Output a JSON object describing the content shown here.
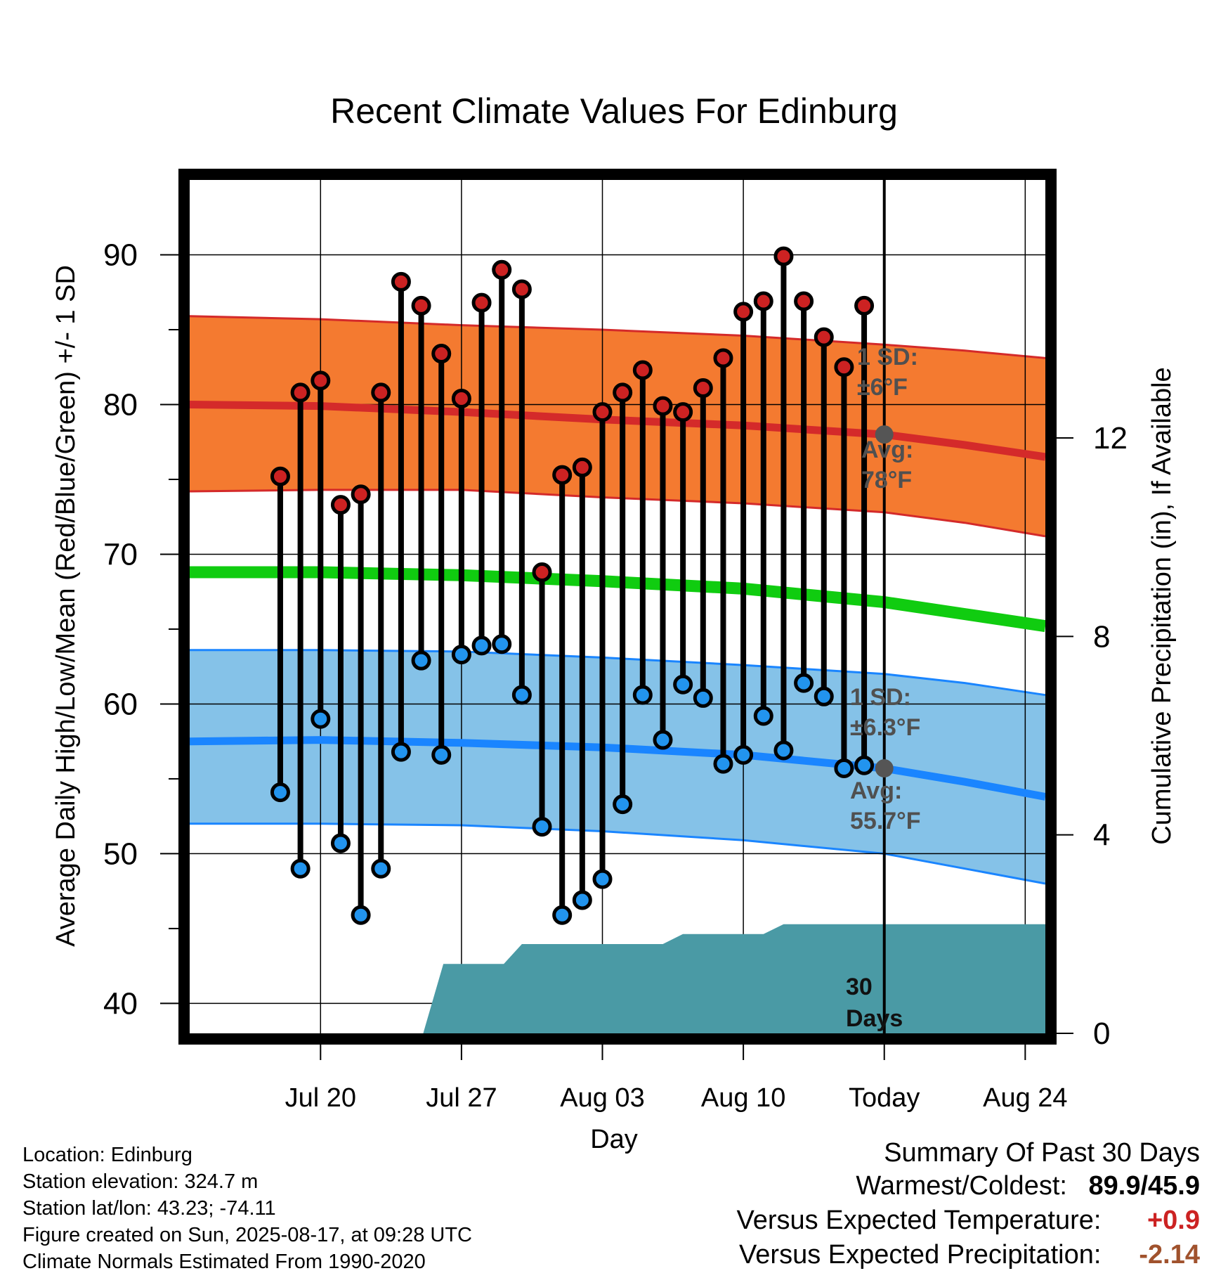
{
  "chart_data": {
    "type": "line",
    "title": "Recent Climate Values For Edinburg",
    "xlabel": "Day",
    "ylabel": "Average Daily High/Low/Mean (Red/Blue/Green) +/- 1 SD",
    "ylabel_right": "Cumulative Precipitation (in), If Available",
    "ylim": [
      38,
      95
    ],
    "y_ticks": [
      "40",
      "50",
      "60",
      "70",
      "80",
      "90"
    ],
    "ylim_right": [
      0,
      17.2
    ],
    "y_ticks_right": [
      "0",
      "4",
      "8",
      "12"
    ],
    "x_range_days": [
      -34.5,
      8
    ],
    "x_ticks": [
      {
        "label": "Jul 20",
        "day": -28
      },
      {
        "label": "Jul 27",
        "day": -21
      },
      {
        "label": "Aug 03",
        "day": -14
      },
      {
        "label": "Aug 10",
        "day": -7
      },
      {
        "label": "Today",
        "day": 0
      },
      {
        "label": "Aug 24",
        "day": 7
      }
    ],
    "daily": [
      {
        "day": -30,
        "high": 75.2,
        "low": 54.1
      },
      {
        "day": -29,
        "high": 80.8,
        "low": 49.0
      },
      {
        "day": -28,
        "high": 81.6,
        "low": 59.0
      },
      {
        "day": -27,
        "high": 73.3,
        "low": 50.7
      },
      {
        "day": -26,
        "high": 74.0,
        "low": 45.9
      },
      {
        "day": -25,
        "high": 80.8,
        "low": 49.0
      },
      {
        "day": -24,
        "high": 88.2,
        "low": 56.8
      },
      {
        "day": -23,
        "high": 86.6,
        "low": 62.9
      },
      {
        "day": -22,
        "high": 83.4,
        "low": 56.6
      },
      {
        "day": -21,
        "high": 80.4,
        "low": 63.3
      },
      {
        "day": -20,
        "high": 86.8,
        "low": 63.9
      },
      {
        "day": -19,
        "high": 89.0,
        "low": 64.0
      },
      {
        "day": -18,
        "high": 87.7,
        "low": 60.6
      },
      {
        "day": -17,
        "high": 68.8,
        "low": 51.8
      },
      {
        "day": -16,
        "high": 75.3,
        "low": 45.9
      },
      {
        "day": -15,
        "high": 75.8,
        "low": 46.9
      },
      {
        "day": -14,
        "high": 79.5,
        "low": 48.3
      },
      {
        "day": -13,
        "high": 80.8,
        "low": 53.3
      },
      {
        "day": -12,
        "high": 82.3,
        "low": 60.6
      },
      {
        "day": -11,
        "high": 79.9,
        "low": 57.6
      },
      {
        "day": -10,
        "high": 79.5,
        "low": 61.3
      },
      {
        "day": -9,
        "high": 81.1,
        "low": 60.4
      },
      {
        "day": -8,
        "high": 83.1,
        "low": 56.0
      },
      {
        "day": -7,
        "high": 86.2,
        "low": 56.6
      },
      {
        "day": -6,
        "high": 86.9,
        "low": 59.2
      },
      {
        "day": -5,
        "high": 89.9,
        "low": 56.9
      },
      {
        "day": -4,
        "high": 86.9,
        "low": 61.4
      },
      {
        "day": -3,
        "high": 84.5,
        "low": 60.5
      },
      {
        "day": -2,
        "high": 82.5,
        "low": 55.7
      },
      {
        "day": -1,
        "high": 86.6,
        "low": 55.9
      }
    ],
    "normals": {
      "days": [
        -34.5,
        -28,
        -21,
        -14,
        -7,
        0,
        4,
        8
      ],
      "high_avg": [
        80.0,
        79.9,
        79.5,
        79.0,
        78.6,
        78.0,
        77.3,
        76.5
      ],
      "high_upper": [
        85.9,
        85.7,
        85.3,
        85.0,
        84.6,
        84.0,
        83.6,
        83.1
      ],
      "high_lower": [
        74.2,
        74.3,
        74.3,
        73.8,
        73.4,
        72.8,
        72.1,
        71.2
      ],
      "mean_avg": [
        68.8,
        68.8,
        68.6,
        68.2,
        67.7,
        66.8,
        66.0,
        65.2
      ],
      "low_avg": [
        57.5,
        57.6,
        57.4,
        57.1,
        56.6,
        55.7,
        54.8,
        53.8
      ],
      "low_upper": [
        63.6,
        63.6,
        63.5,
        63.1,
        62.6,
        62.0,
        61.4,
        60.6
      ],
      "low_lower": [
        52.0,
        52.0,
        51.9,
        51.5,
        50.9,
        50.0,
        49.0,
        48.0
      ]
    },
    "precip_cumulative": {
      "days": [
        -34.5,
        -23.5,
        -22.9,
        -21.9,
        -18.9,
        -18.0,
        -11.0,
        -10.0,
        -6.0,
        -5.0,
        8
      ],
      "values": [
        0,
        0,
        0,
        1.4,
        1.4,
        1.8,
        1.8,
        2.0,
        2.0,
        2.2,
        2.2
      ]
    },
    "colors": {
      "high_band": "#f47a30",
      "high_line": "#d42a2a",
      "low_band": "#85c2e8",
      "low_line": "#1a85ff",
      "mean_line": "#10cc10",
      "precip": "#4a9aa5",
      "high_marker": "#cc2222",
      "low_marker": "#2294ee"
    },
    "annotations": {
      "high_sd_line1": "1 SD:",
      "high_sd_line2": "±6°F",
      "high_avg_line1": "Avg:",
      "high_avg_line2": "78°F",
      "low_sd_line1": "1 SD:",
      "low_sd_line2": "±6.3°F",
      "low_avg_line1": "Avg:",
      "low_avg_line2": "55.7°F",
      "precip_line1": "30",
      "precip_line2": "Days"
    },
    "today_markers": {
      "high": 78.0,
      "low": 55.7
    }
  },
  "info": {
    "location": "Location: Edinburg",
    "elevation": "Station elevation: 324.7 m",
    "latlon": "Station lat/lon: 43.23; -74.11",
    "created": "Figure created on Sun, 2025-08-17, at 09:28 UTC",
    "normals": "Climate Normals Estimated From 1990-2020"
  },
  "summary": {
    "title": "Summary Of Past 30 Days",
    "warm_cold_label": "Warmest/Coldest:",
    "warm_cold_value": "89.9/45.9",
    "temp_label": "Versus Expected Temperature:",
    "temp_value": "+0.9",
    "temp_color": "#cc2222",
    "precip_label": "Versus Expected Precipitation:",
    "precip_value": "-2.14",
    "precip_color": "#a0522d"
  }
}
